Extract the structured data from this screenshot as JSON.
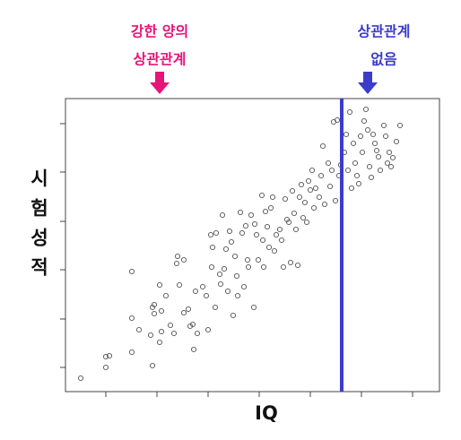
{
  "chart_data": {
    "type": "scatter",
    "x_label": "IQ",
    "y_label": "시험성적",
    "xlim": [
      0,
      417
    ],
    "ylim": [
      0,
      327
    ],
    "xticks": [
      45,
      102,
      159,
      216,
      273,
      330,
      387
    ],
    "yticks": [
      27,
      81,
      136,
      190,
      245,
      299
    ],
    "color": "#555555",
    "vline": {
      "x": 308,
      "color": "#3c3ccc"
    },
    "annotations": [
      {
        "lines": [
          "강한 양의",
          "상관관계"
        ],
        "color": "#e6157a"
      },
      {
        "lines": [
          "상관관계",
          "없음"
        ],
        "color": "#3c3ccc"
      }
    ],
    "x": [
      17,
      45,
      49,
      45,
      74,
      74,
      74,
      97,
      95,
      99,
      97,
      105,
      107,
      107,
      112,
      105,
      99,
      82,
      117,
      121,
      124,
      125,
      132,
      127,
      132,
      137,
      139,
      143,
      145,
      142,
      147,
      153,
      157,
      159,
      163,
      164,
      162,
      167,
      168,
      172,
      173,
      177,
      175,
      179,
      183,
      181,
      185,
      187,
      189,
      191,
      192,
      195,
      197,
      199,
      201,
      203,
      204,
      207,
      211,
      210,
      213,
      215,
      219,
      220,
      221,
      223,
      225,
      227,
      229,
      231,
      233,
      235,
      239,
      241,
      243,
      245,
      247,
      249,
      251,
      253,
      255,
      257,
      259,
      261,
      263,
      265,
      267,
      269,
      271,
      273,
      275,
      277,
      279,
      283,
      285,
      287,
      289,
      293,
      295,
      297,
      299,
      301,
      303,
      305,
      307,
      311,
      313,
      315,
      317,
      319,
      321,
      323,
      325,
      327,
      329,
      331,
      333,
      335,
      337,
      339,
      341,
      343,
      345,
      347,
      349,
      351,
      355,
      357,
      359,
      361,
      363,
      365,
      369,
      373
    ],
    "values": [
      15,
      39,
      40,
      27,
      44,
      82,
      134,
      29,
      63,
      87,
      94,
      55,
      67,
      90,
      107,
      119,
      97,
      69,
      74,
      65,
      143,
      151,
      147,
      119,
      88,
      92,
      73,
      47,
      112,
      75,
      65,
      117,
      107,
      69,
      139,
      161,
      175,
      94,
      177,
      131,
      120,
      137,
      197,
      159,
      179,
      112,
      167,
      85,
      151,
      129,
      107,
      200,
      177,
      117,
      185,
      147,
      139,
      197,
      187,
      94,
      175,
      147,
      219,
      169,
      139,
      201,
      184,
      161,
      205,
      217,
      157,
      175,
      181,
      169,
      139,
      215,
      192,
      189,
      144,
      224,
      199,
      181,
      141,
      217,
      231,
      194,
      211,
      189,
      235,
      225,
      247,
      205,
      227,
      217,
      241,
      274,
      209,
      255,
      229,
      247,
      301,
      213,
      303,
      241,
      253,
      267,
      287,
      247,
      312,
      227,
      277,
      255,
      241,
      232,
      285,
      267,
      302,
      315,
      292,
      251,
      239,
      287,
      277,
      269,
      262,
      247,
      297,
      285,
      255,
      267,
      251,
      261,
      279,
      297
    ]
  }
}
